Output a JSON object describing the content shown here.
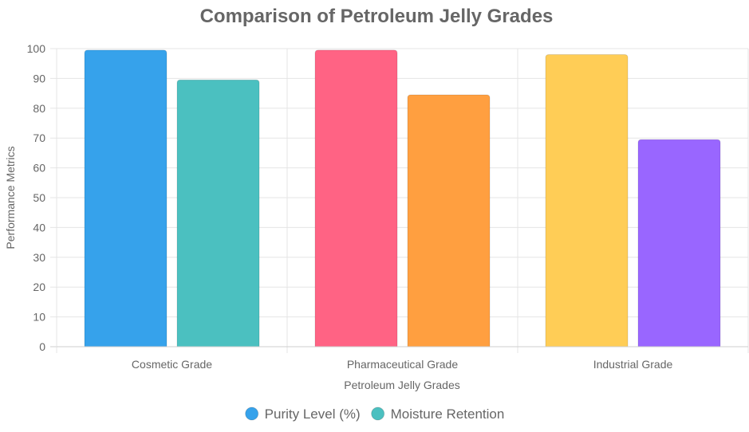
{
  "chart_data": {
    "type": "bar",
    "title": "Comparison of Petroleum Jelly Grades",
    "xlabel": "Petroleum Jelly Grades",
    "ylabel": "Performance Metrics",
    "categories": [
      "Cosmetic Grade",
      "Pharmaceutical Grade",
      "Industrial Grade"
    ],
    "series": [
      {
        "name": "Purity Level (%)",
        "values": [
          99.5,
          99.5,
          98
        ],
        "colors": [
          "#36A2EB",
          "#FF6384",
          "#FFCD56"
        ],
        "legend_color": "#36A2EB"
      },
      {
        "name": "Moisture Retention",
        "values": [
          89.5,
          84.5,
          69.5
        ],
        "colors": [
          "#4BC0C0",
          "#FF9F40",
          "#9966FF"
        ],
        "legend_color": "#4BC0C0"
      }
    ],
    "ylim": [
      0,
      100
    ],
    "yticks": [
      0,
      10,
      20,
      30,
      40,
      50,
      60,
      70,
      80,
      90,
      100
    ],
    "grid": true,
    "legend_position": "bottom"
  }
}
